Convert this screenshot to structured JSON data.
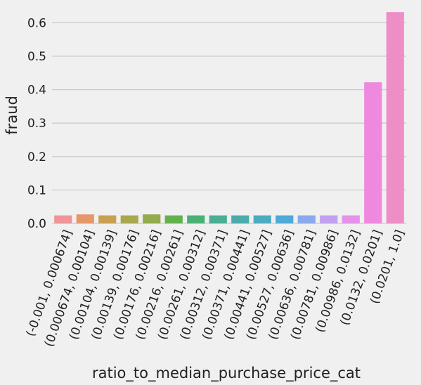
{
  "chart_data": {
    "type": "bar",
    "xlabel": "ratio_to_median_purchase_price_cat",
    "ylabel": "fraud",
    "ylim": [
      0,
      0.66
    ],
    "yticks": [
      "0.0",
      "0.1",
      "0.2",
      "0.3",
      "0.4",
      "0.5",
      "0.6"
    ],
    "grid": true,
    "categories": [
      "(-0.001, 0.000674]",
      "(0.000674, 0.00104]",
      "(0.00104, 0.00139]",
      "(0.00139, 0.00176]",
      "(0.00176, 0.00216]",
      "(0.00216, 0.00261]",
      "(0.00261, 0.00312]",
      "(0.00312, 0.00371]",
      "(0.00371, 0.00441]",
      "(0.00441, 0.00527]",
      "(0.00527, 0.00636]",
      "(0.00636, 0.00781]",
      "(0.00781, 0.00986]",
      "(0.00986, 0.0132]",
      "(0.0132, 0.0201]",
      "(0.0201, 1.0]"
    ],
    "values": [
      0.024,
      0.027,
      0.024,
      0.024,
      0.027,
      0.024,
      0.024,
      0.024,
      0.024,
      0.024,
      0.024,
      0.024,
      0.024,
      0.024,
      0.422,
      0.632
    ],
    "colors": [
      "#f0949a",
      "#e6976a",
      "#c8a052",
      "#a9a84d",
      "#93ab4c",
      "#62b24c",
      "#4ab174",
      "#4aad94",
      "#4aabaa",
      "#4bacbf",
      "#4eaad7",
      "#8aa9ef",
      "#c29ff0",
      "#e492ea",
      "#ee89dd",
      "#ee8ec6"
    ]
  }
}
